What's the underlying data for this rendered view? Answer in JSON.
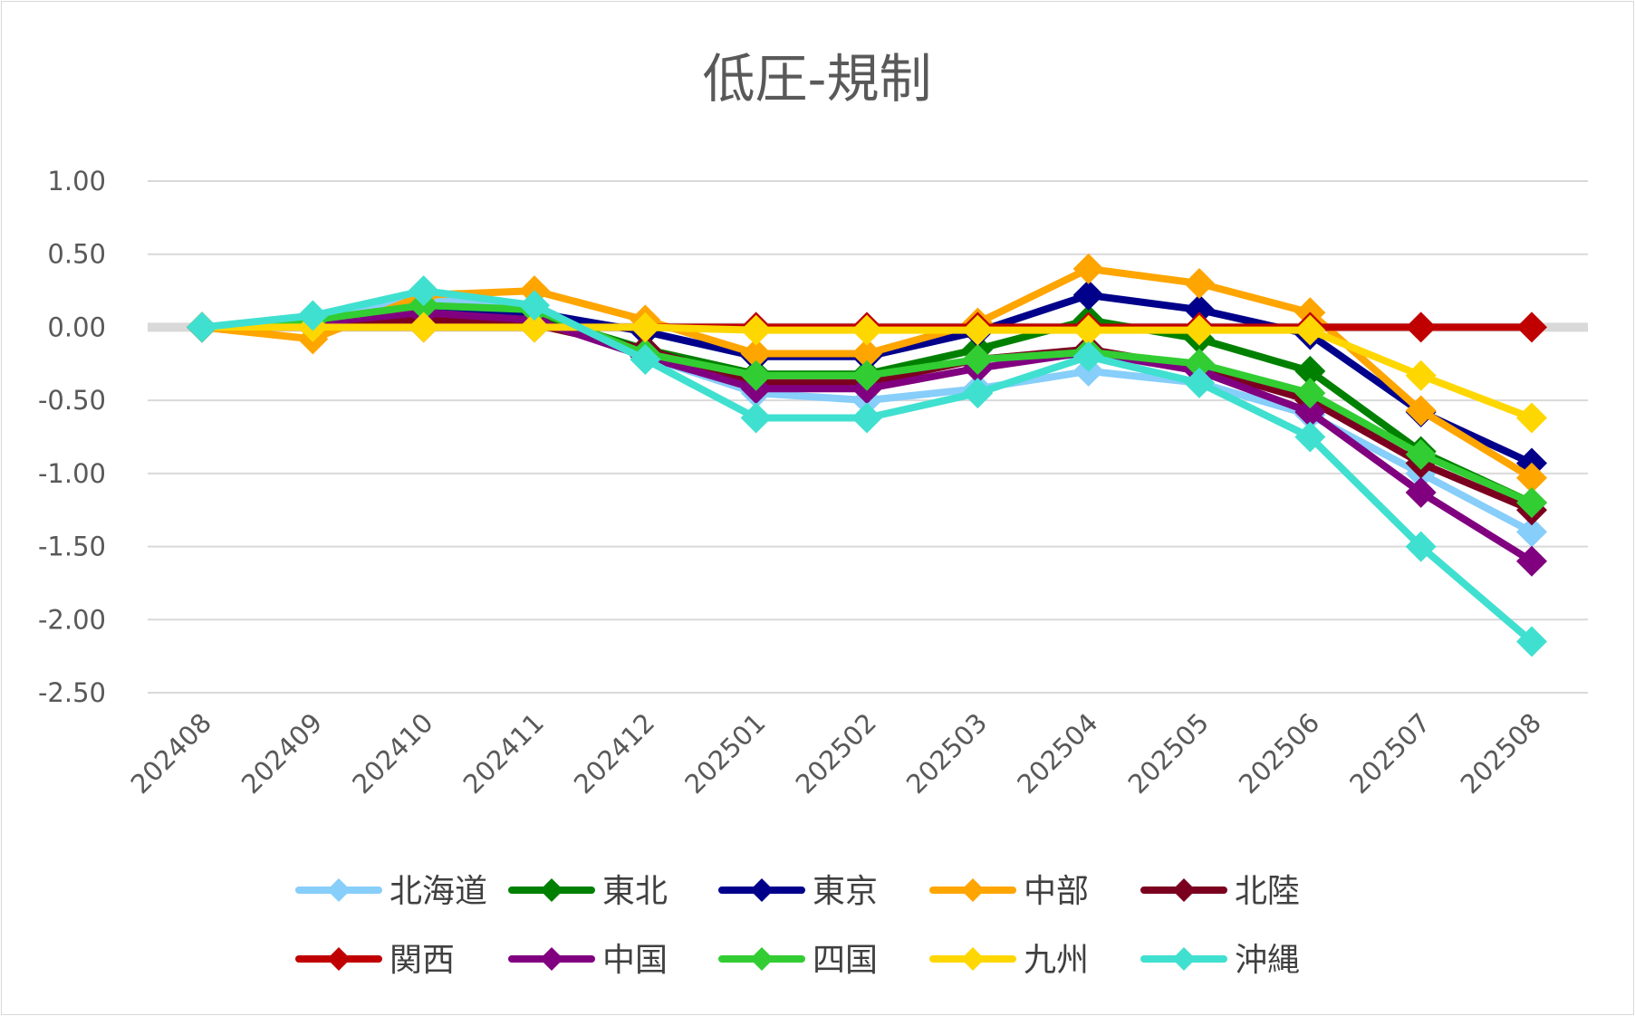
{
  "chart_data": {
    "type": "line",
    "title": "低圧-規制",
    "xlabel": "",
    "ylabel": "",
    "ylim": [
      -2.5,
      1.0
    ],
    "yticks": [
      "1.00",
      "0.50",
      "0.00",
      "-0.50",
      "-1.00",
      "-1.50",
      "-2.00",
      "-2.50"
    ],
    "y_tick_values": [
      1.0,
      0.5,
      0.0,
      -0.5,
      -1.0,
      -1.5,
      -2.0,
      -2.5
    ],
    "categories": [
      "202408",
      "202409",
      "202410",
      "202411",
      "202412",
      "202501",
      "202502",
      "202503",
      "202504",
      "202505",
      "202506",
      "202507",
      "202508"
    ],
    "grid": true,
    "zero_line_highlight": true,
    "legend_position": "bottom",
    "series": [
      {
        "name": "北海道",
        "color": "#87cefa",
        "values": [
          0,
          0.05,
          0.2,
          0.15,
          -0.2,
          -0.45,
          -0.5,
          -0.42,
          -0.3,
          -0.38,
          -0.6,
          -1.0,
          -1.4
        ]
      },
      {
        "name": "東北",
        "color": "#008000",
        "values": [
          0,
          0.05,
          0.12,
          0.08,
          -0.15,
          -0.32,
          -0.32,
          -0.15,
          0.05,
          -0.08,
          -0.3,
          -0.85,
          -1.2
        ]
      },
      {
        "name": "東京",
        "color": "#00008b",
        "values": [
          0,
          0.02,
          0.12,
          0.1,
          -0.03,
          -0.2,
          -0.2,
          -0.03,
          0.22,
          0.12,
          -0.05,
          -0.58,
          -0.93
        ]
      },
      {
        "name": "中部",
        "color": "#ffa500",
        "values": [
          0,
          -0.08,
          0.22,
          0.25,
          0.05,
          -0.18,
          -0.18,
          0.03,
          0.4,
          0.3,
          0.1,
          -0.57,
          -1.03
        ]
      },
      {
        "name": "北陸",
        "color": "#7b0020",
        "values": [
          0,
          0.02,
          0.05,
          0.02,
          -0.15,
          -0.38,
          -0.38,
          -0.22,
          -0.15,
          -0.28,
          -0.5,
          -0.93,
          -1.25
        ]
      },
      {
        "name": "関西",
        "color": "#c00000",
        "values": [
          0,
          0,
          0,
          0,
          0,
          0,
          0,
          0,
          0,
          0,
          0,
          0,
          0
        ]
      },
      {
        "name": "中国",
        "color": "#800080",
        "values": [
          0,
          0.03,
          0.1,
          0.05,
          -0.2,
          -0.42,
          -0.42,
          -0.28,
          -0.17,
          -0.3,
          -0.58,
          -1.13,
          -1.6
        ]
      },
      {
        "name": "四国",
        "color": "#32cd32",
        "values": [
          0,
          0.05,
          0.15,
          0.12,
          -0.18,
          -0.33,
          -0.33,
          -0.22,
          -0.17,
          -0.25,
          -0.45,
          -0.87,
          -1.2
        ]
      },
      {
        "name": "九州",
        "color": "#ffd700",
        "values": [
          0,
          0,
          0,
          0,
          0,
          -0.02,
          -0.02,
          -0.02,
          -0.02,
          -0.02,
          -0.02,
          -0.33,
          -0.62
        ]
      },
      {
        "name": "沖縄",
        "color": "#40e0d0",
        "values": [
          0,
          0.08,
          0.25,
          0.15,
          -0.22,
          -0.62,
          -0.62,
          -0.45,
          -0.2,
          -0.38,
          -0.75,
          -1.5,
          -2.15
        ]
      }
    ]
  }
}
